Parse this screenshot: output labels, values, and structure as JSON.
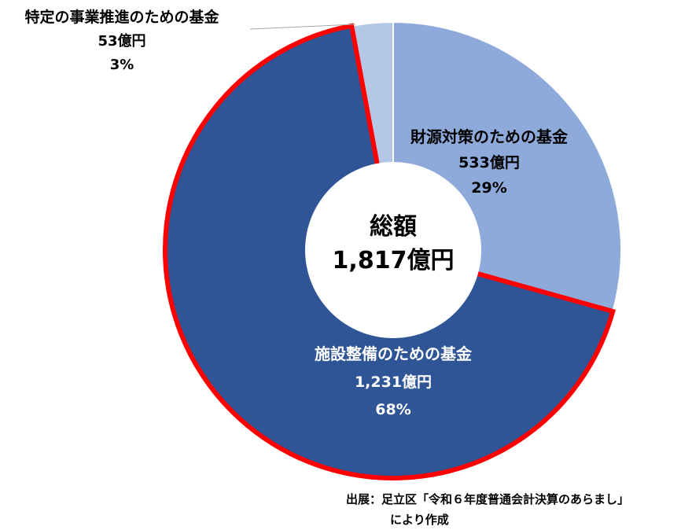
{
  "chart_data": {
    "type": "pie",
    "center_label": "総額",
    "center_total": "1,817億円",
    "slices": [
      {
        "name": "財源対策のための基金",
        "value_label": "533億円",
        "percent_label": "29%",
        "value": 533,
        "color": "#8eaadb",
        "highlighted": false
      },
      {
        "name": "施設整備のための基金",
        "value_label": "1,231億円",
        "percent_label": "68%",
        "value": 1231,
        "color": "#2f5597",
        "highlighted": true,
        "highlight_color": "#ff0000"
      },
      {
        "name": "特定の事業推進のための基金",
        "value_label": "53億円",
        "percent_label": "3%",
        "value": 53,
        "color": "#b4c7e7",
        "highlighted": false
      }
    ]
  },
  "source": {
    "line1": "出展：足立区「令和６年度普通会計決算のあらまし」",
    "line2": "により作成"
  }
}
